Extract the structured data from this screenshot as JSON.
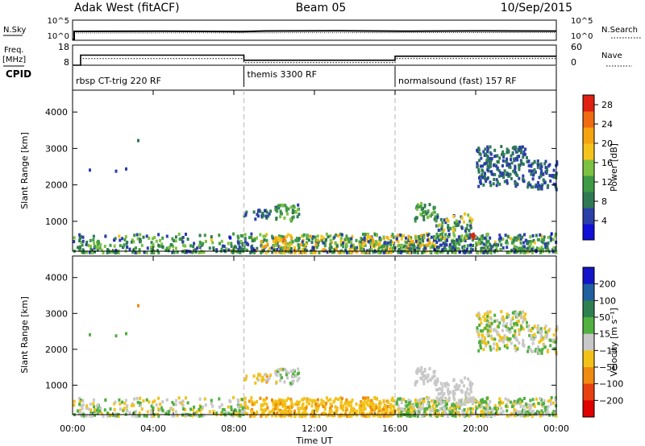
{
  "header": {
    "station": "Adak West (fitACF)",
    "beam": "Beam 05",
    "date": "10/Sep/2015"
  },
  "strip_panels": {
    "nsky": {
      "left_label": "N.Sky",
      "right_label": "N.Search",
      "left_ticks": [
        "10^5",
        "10^0"
      ],
      "right_ticks": [
        "10^5",
        "10^0"
      ]
    },
    "freq": {
      "left_label_line1": "Freq.",
      "left_label_line2": "[MHz]",
      "right_label": "Nave",
      "left_ticks": [
        "18",
        "8"
      ],
      "right_ticks": [
        "60",
        "0"
      ]
    },
    "cpid_label": "CPID"
  },
  "cpid_segments": [
    {
      "label": "rbsp CT-trig 220 RF",
      "start_hour": 0
    },
    {
      "label": "themis 3300 RF",
      "start_hour": 8.5
    },
    {
      "label": "normalsound (fast) 157 RF",
      "start_hour": 16
    }
  ],
  "time_axis": {
    "label": "Time UT",
    "ticks": [
      "00:00",
      "04:00",
      "08:00",
      "12:00",
      "16:00",
      "20:00",
      "00:00"
    ],
    "tick_hours": [
      0,
      4,
      8,
      12,
      16,
      20,
      24
    ],
    "range_hours": [
      0,
      24
    ]
  },
  "range_axis": {
    "label": "Slant Range [km]",
    "ticks": [
      "1000",
      "2000",
      "3000",
      "4000"
    ],
    "tick_values": [
      1000,
      2000,
      3000,
      4000
    ],
    "range_km": [
      180,
      4600
    ]
  },
  "power_scale": {
    "label": "Power [dB]",
    "ticks": [
      "4",
      "8",
      "12",
      "16",
      "20",
      "24",
      "28"
    ],
    "tick_values": [
      4,
      8,
      12,
      16,
      20,
      24,
      28
    ],
    "range": [
      0,
      30
    ],
    "colors": [
      "#1010d8",
      "#2b3fa8",
      "#2f7a55",
      "#3e9a45",
      "#7dc142",
      "#f5c31a",
      "#f5a40f",
      "#ef6a10",
      "#e02010"
    ]
  },
  "velocity_scale": {
    "label": "Velocity [m s⁻¹]",
    "ticks": [
      "200",
      "100",
      "50",
      "15",
      "−15",
      "−50",
      "−100",
      "−200"
    ],
    "tick_values": [
      200,
      100,
      50,
      15,
      -15,
      -50,
      -100,
      -200
    ],
    "colors": [
      "#1414c8",
      "#2060a0",
      "#2f8050",
      "#50b040",
      "#c8c8c8",
      "#f2c218",
      "#f08a10",
      "#e84010",
      "#e00000"
    ]
  },
  "chart_data": {
    "type": "heatmap",
    "x_unit": "hours UT",
    "y_unit": "km",
    "boundaries_hours": [
      8.5,
      16
    ],
    "nave_series": {
      "name": "Nave",
      "x": [
        0,
        0.4,
        0.4,
        8.5,
        8.5,
        16,
        16,
        24
      ],
      "y": [
        0,
        0,
        20,
        20,
        8,
        8,
        20,
        20
      ]
    },
    "freq_series": {
      "name": "Freq.",
      "x": [
        0,
        0.4,
        0.4,
        8.5,
        8.5,
        16,
        16,
        24
      ],
      "y": [
        8,
        8,
        13,
        13,
        10.5,
        10.5,
        12.5,
        12.5
      ]
    },
    "scatter_regions": [
      {
        "t0": 8.4,
        "t1": 9.8,
        "r0": 1100,
        "r1": 1350,
        "power": [
          4,
          10
        ],
        "velocity": [
          -60,
          10
        ]
      },
      {
        "t0": 10.0,
        "t1": 11.2,
        "r0": 1050,
        "r1": 1500,
        "power": [
          6,
          16
        ],
        "velocity": [
          -20,
          30
        ]
      },
      {
        "t0": 9.8,
        "t1": 10.5,
        "r0": 420,
        "r1": 600,
        "power": [
          18,
          24
        ],
        "velocity": [
          -60,
          -30
        ]
      },
      {
        "t0": 16.9,
        "t1": 18.0,
        "r0": 1050,
        "r1": 1550,
        "power": [
          6,
          16
        ],
        "velocity": [
          -15,
          15
        ]
      },
      {
        "t0": 18.0,
        "t1": 19.8,
        "r0": 500,
        "r1": 1250,
        "power": [
          4,
          20
        ],
        "velocity": [
          -15,
          15
        ]
      },
      {
        "t0": 19.5,
        "t1": 19.9,
        "r0": 550,
        "r1": 720,
        "power": [
          24,
          30
        ],
        "velocity": [
          -15,
          15
        ]
      },
      {
        "t0": 20.0,
        "t1": 22.5,
        "r0": 2000,
        "r1": 3100,
        "power": [
          4,
          10
        ],
        "velocity": [
          -40,
          40
        ]
      },
      {
        "t0": 22.5,
        "t1": 24.0,
        "r0": 1900,
        "r1": 2700,
        "power": [
          4,
          8
        ],
        "velocity": [
          -30,
          30
        ]
      }
    ],
    "isolated_points": [
      {
        "t": 3.2,
        "r": 3260,
        "power": 8,
        "velocity": -100
      },
      {
        "t": 0.8,
        "r": 2450,
        "power": 6,
        "velocity": 15
      },
      {
        "t": 2.1,
        "r": 2420,
        "power": 6,
        "velocity": 15
      },
      {
        "t": 2.6,
        "r": 2480,
        "power": 6,
        "velocity": 15
      }
    ],
    "ground_band_km": [
      180,
      700
    ]
  }
}
